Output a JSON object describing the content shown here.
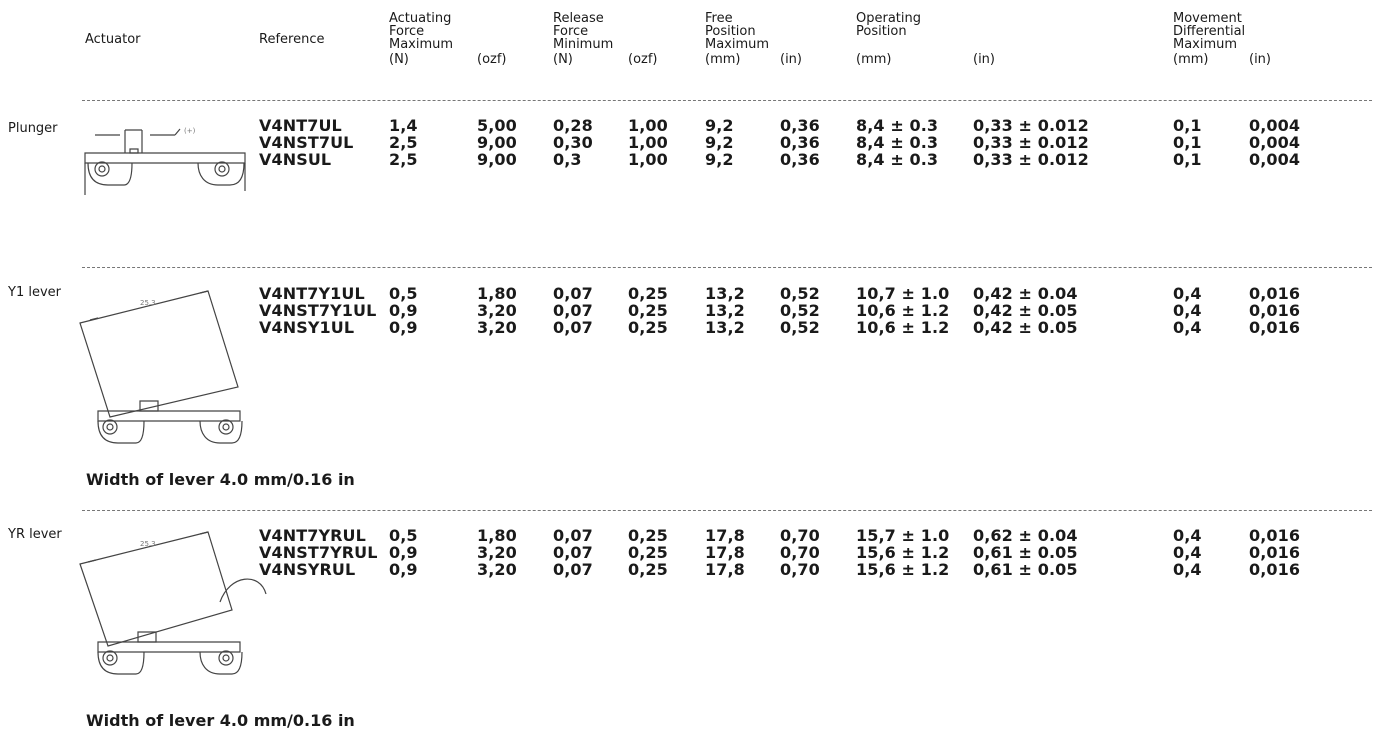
{
  "headers": {
    "actuator": "Actuator",
    "reference": "Reference",
    "actuating": [
      "Actuating",
      "Force",
      "Maximum"
    ],
    "release": [
      "Release",
      "Force",
      "Minimum"
    ],
    "free": [
      "Free",
      "Position",
      "Maximum"
    ],
    "operating": [
      "Operating",
      "Position"
    ],
    "movement": [
      "Movement",
      "Differential",
      "Maximum"
    ],
    "units": {
      "act_n": "(N)",
      "act_ozf": "(ozf)",
      "rel_n": "(N)",
      "rel_ozf": "(ozf)",
      "free_mm": "(mm)",
      "free_in": "(in)",
      "op_mm": "(mm)",
      "op_in": "(in)",
      "mov_mm": "(mm)",
      "mov_in": "(in)"
    }
  },
  "groups": [
    {
      "label": "Plunger",
      "drawing_icon": "plunger-actuator-drawing",
      "rows": [
        {
          "ref": "V4NT7UL",
          "act_n": "1,4",
          "act_ozf": "5,00",
          "rel_n": "0,28",
          "rel_ozf": "1,00",
          "free_mm": "9,2",
          "free_in": "0,36",
          "op_mm": "8,4 ± 0.3",
          "op_in": "0,33 ± 0.012",
          "mov_mm": "0,1",
          "mov_in": "0,004"
        },
        {
          "ref": "V4NST7UL",
          "act_n": "2,5",
          "act_ozf": "9,00",
          "rel_n": "0,30",
          "rel_ozf": "1,00",
          "free_mm": "9,2",
          "free_in": "0,36",
          "op_mm": "8,4 ± 0.3",
          "op_in": "0,33 ± 0.012",
          "mov_mm": "0,1",
          "mov_in": "0,004"
        },
        {
          "ref": "V4NSUL",
          "act_n": "2,5",
          "act_ozf": "9,00",
          "rel_n": "0,3",
          "rel_ozf": "1,00",
          "free_mm": "9,2",
          "free_in": "0,36",
          "op_mm": "8,4 ± 0.3",
          "op_in": "0,33 ± 0.012",
          "mov_mm": "0,1",
          "mov_in": "0,004"
        }
      ]
    },
    {
      "label": "Y1 lever",
      "drawing_icon": "y1-lever-actuator-drawing",
      "note": "Width of lever 4.0 mm/0.16 in",
      "rows": [
        {
          "ref": "V4NT7Y1UL",
          "act_n": "0,5",
          "act_ozf": "1,80",
          "rel_n": "0,07",
          "rel_ozf": "0,25",
          "free_mm": "13,2",
          "free_in": "0,52",
          "op_mm": "10,7 ± 1.0",
          "op_in": "0,42 ± 0.04",
          "mov_mm": "0,4",
          "mov_in": "0,016"
        },
        {
          "ref": "V4NST7Y1UL",
          "act_n": "0,9",
          "act_ozf": "3,20",
          "rel_n": "0,07",
          "rel_ozf": "0,25",
          "free_mm": "13,2",
          "free_in": "0,52",
          "op_mm": "10,6 ± 1.2",
          "op_in": "0,42 ± 0.05",
          "mov_mm": "0,4",
          "mov_in": "0,016"
        },
        {
          "ref": "V4NSY1UL",
          "act_n": "0,9",
          "act_ozf": "3,20",
          "rel_n": "0,07",
          "rel_ozf": "0,25",
          "free_mm": "13,2",
          "free_in": "0,52",
          "op_mm": "10,6 ± 1.2",
          "op_in": "0,42 ± 0.05",
          "mov_mm": "0,4",
          "mov_in": "0,016"
        }
      ]
    },
    {
      "label": "YR lever",
      "drawing_icon": "yr-lever-actuator-drawing",
      "note": "Width of lever 4.0 mm/0.16 in",
      "rows": [
        {
          "ref": "V4NT7YRUL",
          "act_n": "0,5",
          "act_ozf": "1,80",
          "rel_n": "0,07",
          "rel_ozf": "0,25",
          "free_mm": "17,8",
          "free_in": "0,70",
          "op_mm": "15,7 ± 1.0",
          "op_in": "0,62 ± 0.04",
          "mov_mm": "0,4",
          "mov_in": "0,016"
        },
        {
          "ref": "V4NST7YRUL",
          "act_n": "0,9",
          "act_ozf": "3,20",
          "rel_n": "0,07",
          "rel_ozf": "0,25",
          "free_mm": "17,8",
          "free_in": "0,70",
          "op_mm": "15,6 ± 1.2",
          "op_in": "0,61 ± 0.05",
          "mov_mm": "0,4",
          "mov_in": "0,016"
        },
        {
          "ref": "V4NSYRUL",
          "act_n": "0,9",
          "act_ozf": "3,20",
          "rel_n": "0,07",
          "rel_ozf": "0,25",
          "free_mm": "17,8",
          "free_in": "0,70",
          "op_mm": "15,6 ± 1.2",
          "op_in": "0,61 ± 0.05",
          "mov_mm": "0,4",
          "mov_in": "0,016"
        }
      ]
    }
  ]
}
